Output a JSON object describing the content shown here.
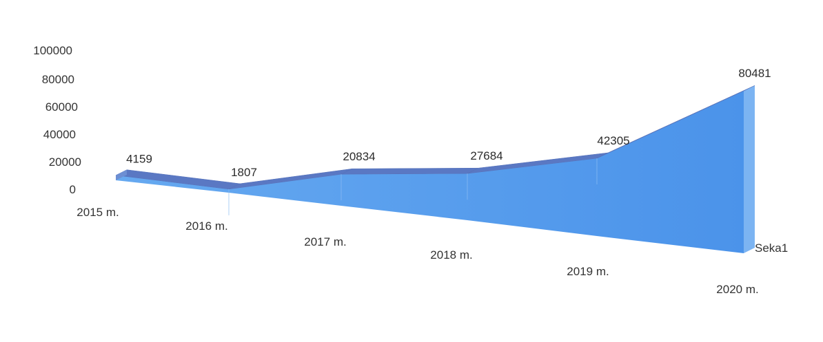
{
  "chart_data": {
    "type": "area",
    "categories": [
      "2015 m.",
      "2016 m.",
      "2017 m.",
      "2018 m.",
      "2019 m.",
      "2020 m."
    ],
    "series": [
      {
        "name": "Seka1",
        "values": [
          4159,
          1807,
          20834,
          27684,
          42305,
          80481
        ]
      }
    ],
    "y_ticks": [
      "0",
      "20000",
      "40000",
      "60000",
      "80000",
      "100000"
    ],
    "ylim": [
      0,
      100000
    ],
    "title": "",
    "xlabel": "",
    "ylabel": "",
    "grid": false,
    "three_d": true,
    "colors": {
      "front": "#5fa4ef",
      "top": "#5a78c3",
      "side": "#7cb4f2",
      "text": "#333333"
    }
  }
}
